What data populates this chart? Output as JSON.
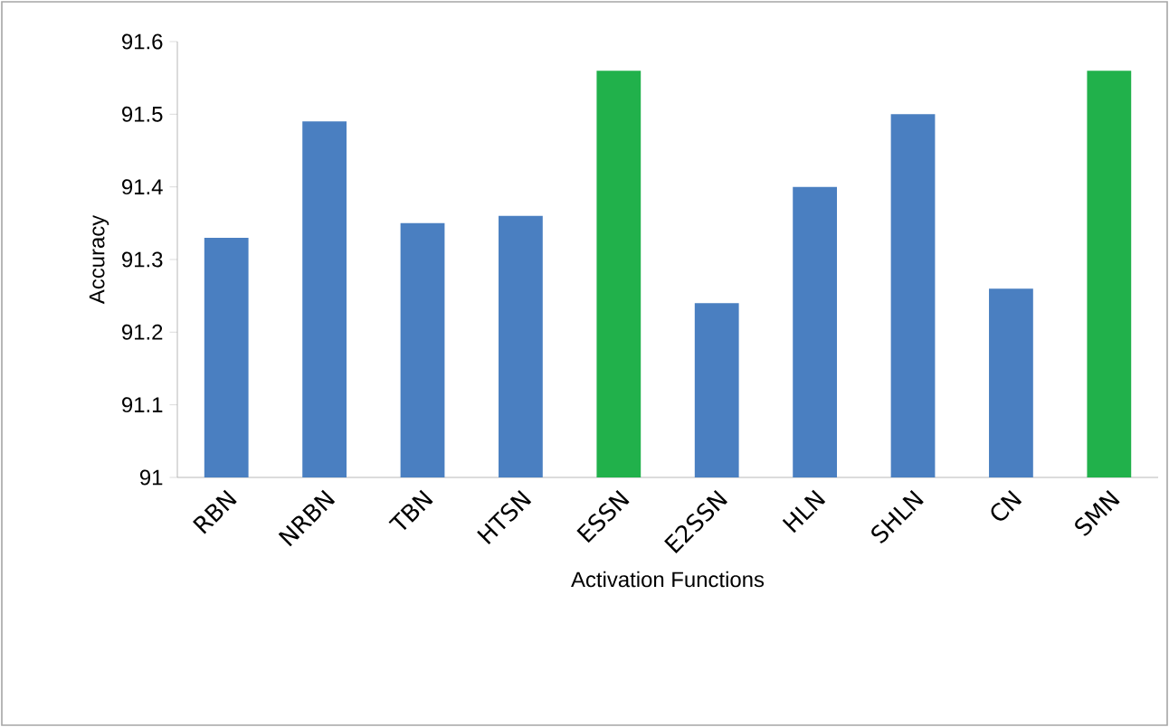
{
  "chart_data": {
    "type": "bar",
    "xlabel": "Activation Functions",
    "ylabel": "Accuracy",
    "categories": [
      "RBN",
      "NRBN",
      "TBN",
      "HTSN",
      "ESSN",
      "E2SSN",
      "HLN",
      "SHLN",
      "CN",
      "SMN"
    ],
    "values": [
      91.33,
      91.49,
      91.35,
      91.36,
      91.56,
      91.24,
      91.4,
      91.5,
      91.26,
      91.56
    ],
    "colors": [
      "#4a7fc1",
      "#4a7fc1",
      "#4a7fc1",
      "#4a7fc1",
      "#21b14b",
      "#4a7fc1",
      "#4a7fc1",
      "#4a7fc1",
      "#4a7fc1",
      "#21b14b"
    ],
    "ylim": [
      91,
      91.6
    ],
    "yticks": [
      91,
      91.1,
      91.2,
      91.3,
      91.4,
      91.5,
      91.6
    ],
    "grid": false
  }
}
